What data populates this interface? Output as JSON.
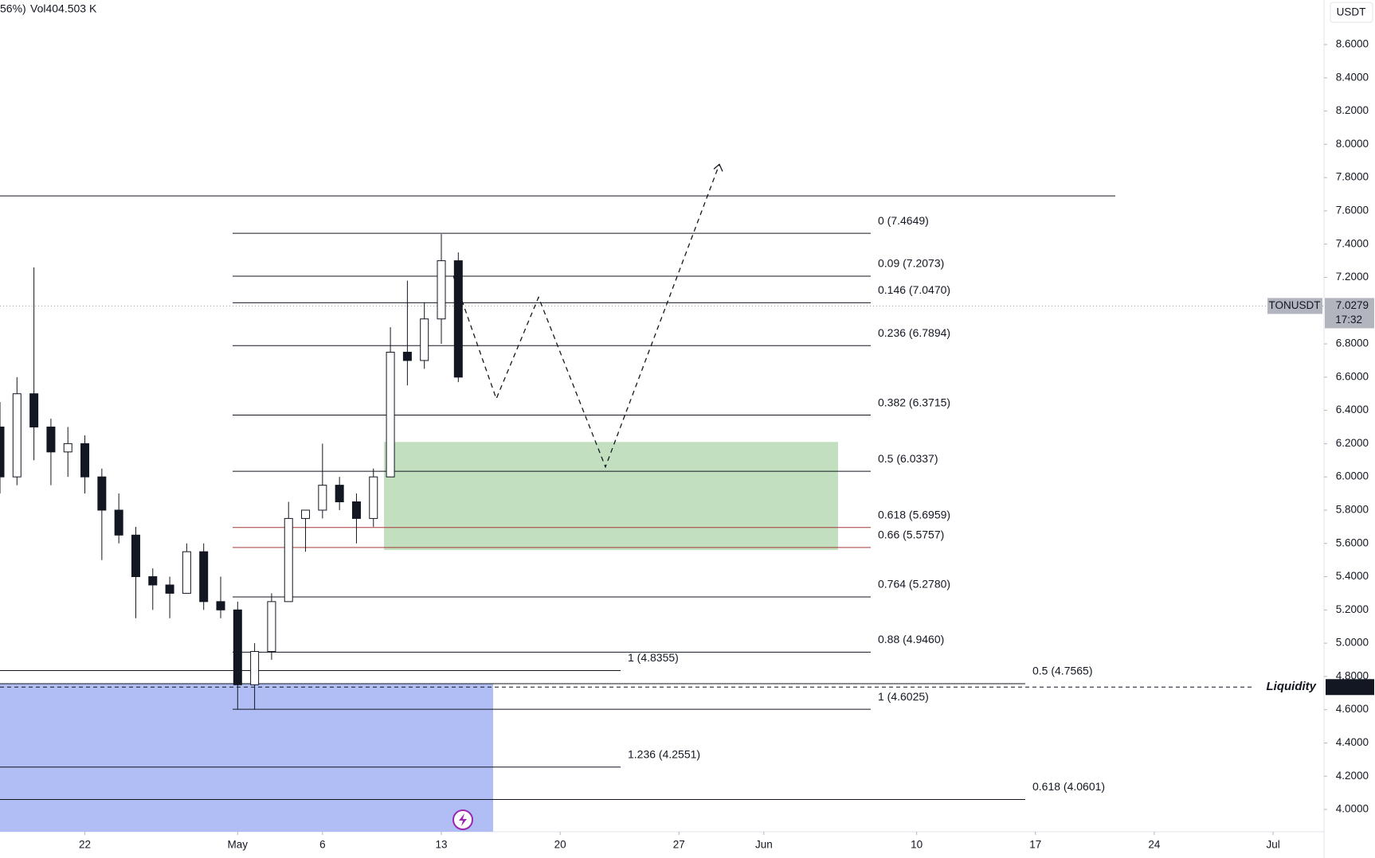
{
  "chart_data": {
    "type": "candlestick",
    "header": {
      "change": "56%)",
      "volume": "Vol404.503 K"
    },
    "currency": "USDT",
    "symbol": "TONUSDT",
    "last_price": {
      "value": 7.0279,
      "label": "7.0279"
    },
    "countdown": "17:32",
    "liquidity": {
      "text": "Liquidity",
      "value": 4.7359,
      "label": "4.7359"
    },
    "ylim": [
      3.866,
      8.868
    ],
    "yticks": [
      {
        "value": 8.6,
        "label": "8.6000"
      },
      {
        "value": 8.4,
        "label": "8.4000"
      },
      {
        "value": 8.2,
        "label": "8.2000"
      },
      {
        "value": 8.0,
        "label": "8.0000"
      },
      {
        "value": 7.8,
        "label": "7.8000"
      },
      {
        "value": 7.6,
        "label": "7.6000"
      },
      {
        "value": 7.4,
        "label": "7.4000"
      },
      {
        "value": 7.2,
        "label": "7.2000"
      },
      {
        "value": 6.8,
        "label": "6.8000"
      },
      {
        "value": 6.6,
        "label": "6.6000"
      },
      {
        "value": 6.4,
        "label": "6.4000"
      },
      {
        "value": 6.2,
        "label": "6.2000"
      },
      {
        "value": 6.0,
        "label": "6.0000"
      },
      {
        "value": 5.8,
        "label": "5.8000"
      },
      {
        "value": 5.6,
        "label": "5.6000"
      },
      {
        "value": 5.4,
        "label": "5.4000"
      },
      {
        "value": 5.2,
        "label": "5.2000"
      },
      {
        "value": 5.0,
        "label": "5.0000"
      },
      {
        "value": 4.8,
        "label": "4.8000"
      },
      {
        "value": 4.6,
        "label": "4.6000"
      },
      {
        "value": 4.4,
        "label": "4.4000"
      },
      {
        "value": 4.2,
        "label": "4.2000"
      },
      {
        "value": 4.0,
        "label": "4.0000"
      }
    ],
    "xlim": [
      "04-17",
      "07-04"
    ],
    "xticks": [
      {
        "value": "04-22",
        "label": "22"
      },
      {
        "value": "05-01",
        "label": "May"
      },
      {
        "value": "05-06",
        "label": "6"
      },
      {
        "value": "05-13",
        "label": "13"
      },
      {
        "value": "05-20",
        "label": "20"
      },
      {
        "value": "05-27",
        "label": "27"
      },
      {
        "value": "06-01",
        "label": "Jun"
      },
      {
        "value": "06-10",
        "label": "10"
      },
      {
        "value": "06-17",
        "label": "17"
      },
      {
        "value": "06-24",
        "label": "24"
      },
      {
        "value": "07-01",
        "label": "Jul"
      }
    ],
    "x": [
      "04-17",
      "04-18",
      "04-19",
      "04-20",
      "04-21",
      "04-22",
      "04-23",
      "04-24",
      "04-25",
      "04-26",
      "04-27",
      "04-28",
      "04-29",
      "04-30",
      "05-01",
      "05-02",
      "05-03",
      "05-04",
      "05-05",
      "05-06",
      "05-07",
      "05-08",
      "05-09",
      "05-10",
      "05-11",
      "05-12",
      "05-13",
      "05-14"
    ],
    "open": [
      6.3,
      6.0,
      6.5,
      6.3,
      6.15,
      6.2,
      6.0,
      5.8,
      5.65,
      5.4,
      5.35,
      5.3,
      5.55,
      5.25,
      5.2,
      4.75,
      4.95,
      5.25,
      5.75,
      5.8,
      5.95,
      5.85,
      5.75,
      6.0,
      6.75,
      6.7,
      6.95,
      7.3
    ],
    "high": [
      6.45,
      6.6,
      7.26,
      6.35,
      6.3,
      6.25,
      6.05,
      5.9,
      5.7,
      5.45,
      5.4,
      5.6,
      5.6,
      5.4,
      5.25,
      5.0,
      5.3,
      5.85,
      5.8,
      6.2,
      6.0,
      5.9,
      6.05,
      6.9,
      7.18,
      7.05,
      7.46,
      7.35
    ],
    "low": [
      5.9,
      5.95,
      6.1,
      5.95,
      6.0,
      5.9,
      5.5,
      5.6,
      5.15,
      5.2,
      5.15,
      5.3,
      5.2,
      5.15,
      4.6,
      4.6,
      4.9,
      5.25,
      5.55,
      5.75,
      5.8,
      5.6,
      5.7,
      6.0,
      6.55,
      6.65,
      6.8,
      6.57
    ],
    "close": [
      6.0,
      6.5,
      6.3,
      6.15,
      6.2,
      6.0,
      5.8,
      5.65,
      5.4,
      5.35,
      5.3,
      5.55,
      5.25,
      5.2,
      4.75,
      4.95,
      5.25,
      5.75,
      5.8,
      5.95,
      5.85,
      5.75,
      6.0,
      6.75,
      6.7,
      6.95,
      7.3,
      6.6
    ],
    "horizontal_lines": [
      7.69
    ],
    "fib_main": [
      {
        "label": "0 (7.4649)",
        "value": 7.4649,
        "color": "#131722"
      },
      {
        "label": "0.09 (7.2073)",
        "value": 7.2073,
        "color": "#131722"
      },
      {
        "label": "0.146 (7.0470)",
        "value": 7.047,
        "color": "#131722"
      },
      {
        "label": "0.236 (6.7894)",
        "value": 6.7894,
        "color": "#131722"
      },
      {
        "label": "0.382 (6.3715)",
        "value": 6.3715,
        "color": "#131722"
      },
      {
        "label": "0.5 (6.0337)",
        "value": 6.0337,
        "color": "#131722"
      },
      {
        "label": "0.618 (5.6959)",
        "value": 5.6959,
        "color": "#a63a3a"
      },
      {
        "label": "0.66 (5.5757)",
        "value": 5.5757,
        "color": "#a63a3a"
      },
      {
        "label": "0.764 (5.2780)",
        "value": 5.278,
        "color": "#131722"
      },
      {
        "label": "0.88 (4.9460)",
        "value": 4.946,
        "color": "#131722"
      },
      {
        "label": "1 (4.6025)",
        "value": 4.6025,
        "color": "#131722"
      }
    ],
    "fib_ext": [
      {
        "label": "1 (4.8355)",
        "value": 4.8355,
        "color": "#131722"
      },
      {
        "label": "1.236 (4.2551)",
        "value": 4.2551,
        "color": "#131722"
      }
    ],
    "fib_long": [
      {
        "label": "0.5 (4.7565)",
        "value": 4.7565,
        "color": "#131722"
      },
      {
        "label": "0.618 (4.0601)",
        "value": 4.0601,
        "color": "#131722"
      }
    ],
    "zone_green": {
      "top": 6.21,
      "bottom": 5.56,
      "color": "#c2e0c0"
    },
    "zone_blue": {
      "top": 4.755,
      "bottom": 3.866,
      "color": "#b0bef5"
    },
    "projection": [
      7.21,
      6.47,
      7.08,
      6.06,
      7.88
    ]
  }
}
